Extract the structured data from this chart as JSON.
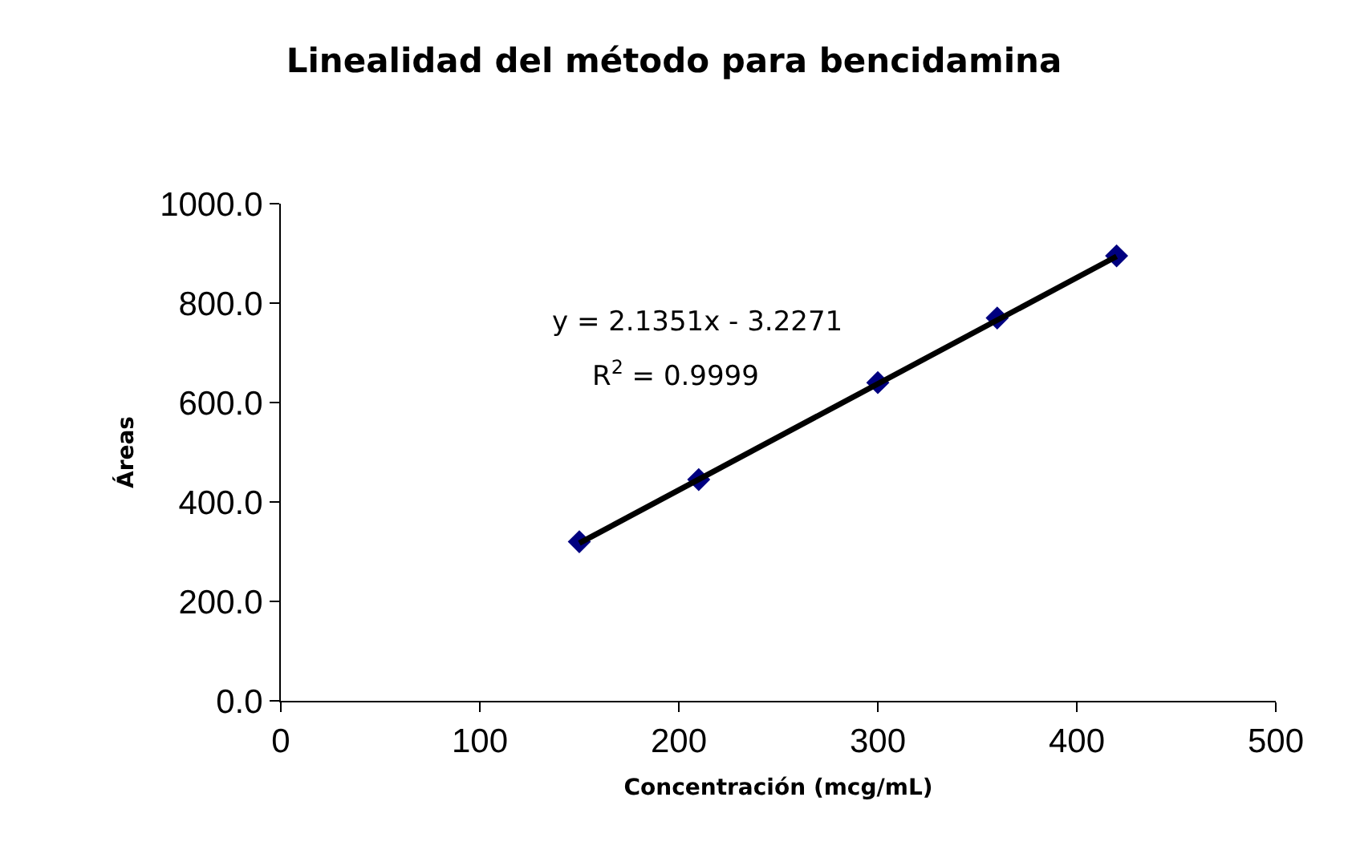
{
  "chart_data": {
    "type": "scatter",
    "title": "Linealidad del método para bencidamina",
    "xlabel": "Concentración (mcg/mL)",
    "ylabel": "Áreas",
    "x": [
      150,
      210,
      300,
      360,
      420
    ],
    "series": [
      {
        "color": "#000080",
        "marker": "diamond",
        "values": [
          320,
          445,
          640,
          770,
          895
        ]
      },
      {
        "type": "line",
        "color": "#000000",
        "marker": "none",
        "x": [
          150,
          420
        ],
        "values": [
          317,
          894
        ]
      }
    ],
    "annotations": [
      "y = 2.1351x - 3.2271",
      "R$^{2}$ = 0.9999"
    ],
    "xlim": [
      0,
      500
    ],
    "xticks": [
      0,
      100,
      200,
      300,
      400,
      500
    ],
    "ylim": [
      0,
      1000
    ],
    "yticks": [
      {
        "value": 0,
        "label": "0.0"
      },
      {
        "value": 200,
        "label": "200.0"
      },
      {
        "value": 400,
        "label": "400.0"
      },
      {
        "value": 600,
        "label": "600.0"
      },
      {
        "value": 800,
        "label": "800.0"
      },
      {
        "value": 1000,
        "label": "1000.0"
      }
    ],
    "grid": false
  }
}
